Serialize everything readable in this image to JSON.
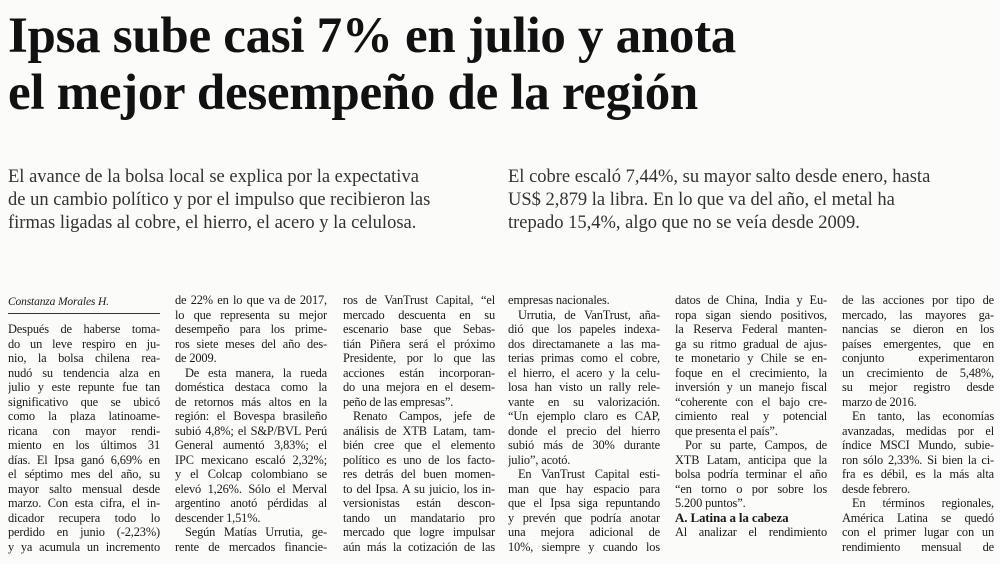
{
  "headline": [
    "Ipsa sube casi 7% en julio y anota",
    "el mejor desempeño de la región"
  ],
  "lead": [
    [
      "El avance de la bolsa local se explica por la expectativa",
      "de un cambio político y por el impulso que recibieron las",
      "firmas ligadas al cobre, el hierro, el acero y la celulosa."
    ],
    [
      "El cobre escaló 7,44%, su mayor salto desde enero, hasta",
      "US$ 2,879 la libra. En lo que va del año, el metal ha",
      "trepado 15,4%, algo que no se veía desde 2009."
    ]
  ],
  "byline": "Constanza Morales H.",
  "columns": [
    [
      [
        "Después de haberse toma-",
        "do un leve respiro en ju-",
        "nio, la bolsa chilena rea-",
        "nudó su tendencia alza en",
        "julio y este repunte fue tan",
        "significativo que se ubicó",
        "como la plaza latinoame-",
        "ricana con mayor rendi-",
        "miento en los últimos 31",
        "días. El Ipsa ganó 6,69% en",
        "el séptimo mes del año, su",
        "mayor salto mensual desde",
        "marzo. Con esta cifra, el in-",
        "dicador recupera todo lo",
        "perdido en junio (-2,23%)",
        "y ya acumula un incremento"
      ]
    ],
    [
      [
        "de 22% en lo que va de 2017,",
        "lo que representa su mejor",
        "desempeño para los prime-",
        "ros siete meses del año des-",
        "de 2009."
      ],
      [
        "De esta manera, la rueda",
        "doméstica destaca como la",
        "de retornos más altos en la",
        "región: el Bovespa brasileño",
        "subió 4,8%; el S&P/BVL Perú",
        "General aumentó 3,83%; el",
        "IPC mexicano escaló 2,32%;",
        "y el Colcap colombiano se",
        "elevó 1,26%. Sólo el Merval",
        "argentino anotó pérdidas al",
        "descender 1,51%."
      ],
      [
        "Según Matías Urrutia, ge-",
        "rente de mercados financie-"
      ]
    ],
    [
      [
        "ros de VanTrust Capital, “el",
        "mercado descuenta en su",
        "escenario base que Sebas-",
        "tián Piñera será el próximo",
        "Presidente, por lo que las",
        "acciones están incorporan-",
        "do una mejora en el desem-",
        "peño de las empresas”."
      ],
      [
        "Renato Campos, jefe de",
        "análisis de XTB Latam, tam-",
        "bién cree que el elemento",
        "político es uno de los facto-",
        "res detrás del buen momen-",
        "to del Ipsa. A su juicio, los in-",
        "versionistas están descon-",
        "tando un mandatario pro",
        "mercado que logre impulsar",
        "aún más la cotización de las"
      ]
    ],
    [
      [
        "empresas nacionales."
      ],
      [
        "Urrutia, de VanTrust, aña-",
        "dió que los papeles indexa-",
        "dos directamanete a las ma-",
        "terias primas como el cobre,",
        "el hierro, el acero y la celu-",
        "losa han visto un rally rele-",
        "vante en su valorización.",
        "“Un ejemplo claro es CAP,",
        "donde el precio del hierro",
        "subió más de 30% durante",
        "julio”, acotó."
      ],
      [
        "En VanTrust Capital esti-",
        "man que hay espacio para",
        "que el Ipsa siga repuntando",
        "y prevén que podría anotar",
        "una mejora adicional de",
        "10%, siempre y cuando los"
      ]
    ],
    [
      [
        "datos de China, India y Eu-",
        "ropa sigan siendo positivos,",
        "la Reserva Federal manten-",
        "ga su ritmo gradual de ajus-",
        "te monetario y Chile se en-",
        "foque en el crecimiento, la",
        "inversión y un manejo fiscal",
        "“coherente con el bajo cre-",
        "cimiento real y potencial",
        "que presenta el país”."
      ],
      [
        "Por su parte, Campos, de",
        "XTB Latam, anticipa que la",
        "bolsa podría terminar el año",
        "“en torno o por sobre los",
        "5.200 puntos”."
      ],
      "A. Latina a la cabeza",
      [
        "Al analizar el rendimiento"
      ]
    ],
    [
      [
        "de las acciones por tipo de",
        "mercado, las mayores ga-",
        "nancias se dieron en los",
        "países emergentes, que en",
        "conjunto experimentaron",
        "un crecimiento de 5,48%,",
        "su mejor registro desde",
        "marzo de 2016."
      ],
      [
        "En tanto, las economías",
        "avanzadas, medidas por el",
        "índice MSCI Mundo, subie-",
        "ron sólo 2,33%. Si bien la ci-",
        "fra es débil, es la más alta",
        "desde febrero."
      ],
      [
        "En términos regionales,",
        "América Latina se quedó",
        "con el primer lugar con un",
        "rendimiento mensual de"
      ]
    ]
  ]
}
